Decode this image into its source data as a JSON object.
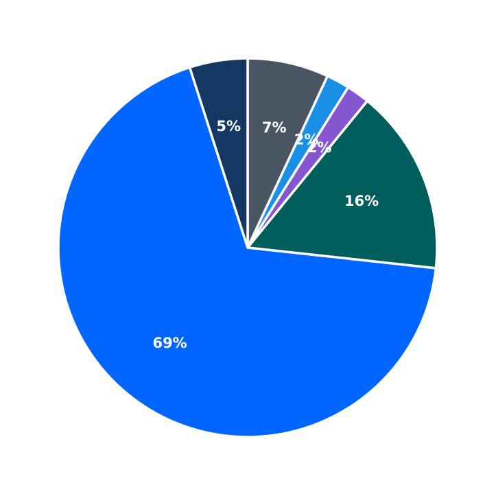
{
  "chart_data": {
    "type": "pie",
    "start": "12 o'clock",
    "direction": "clockwise",
    "slices": [
      {
        "value": 7,
        "label": "7%",
        "color": "#4a5563"
      },
      {
        "value": 2,
        "label": "2%",
        "color": "#1990e6"
      },
      {
        "value": 2,
        "label": "2%",
        "color": "#8655d0"
      },
      {
        "value": 16,
        "label": "16%",
        "color": "#005f5c"
      },
      {
        "value": 69,
        "label": "69%",
        "color": "#0066ff"
      },
      {
        "value": 5,
        "label": "5%",
        "color": "#143862"
      }
    ]
  }
}
